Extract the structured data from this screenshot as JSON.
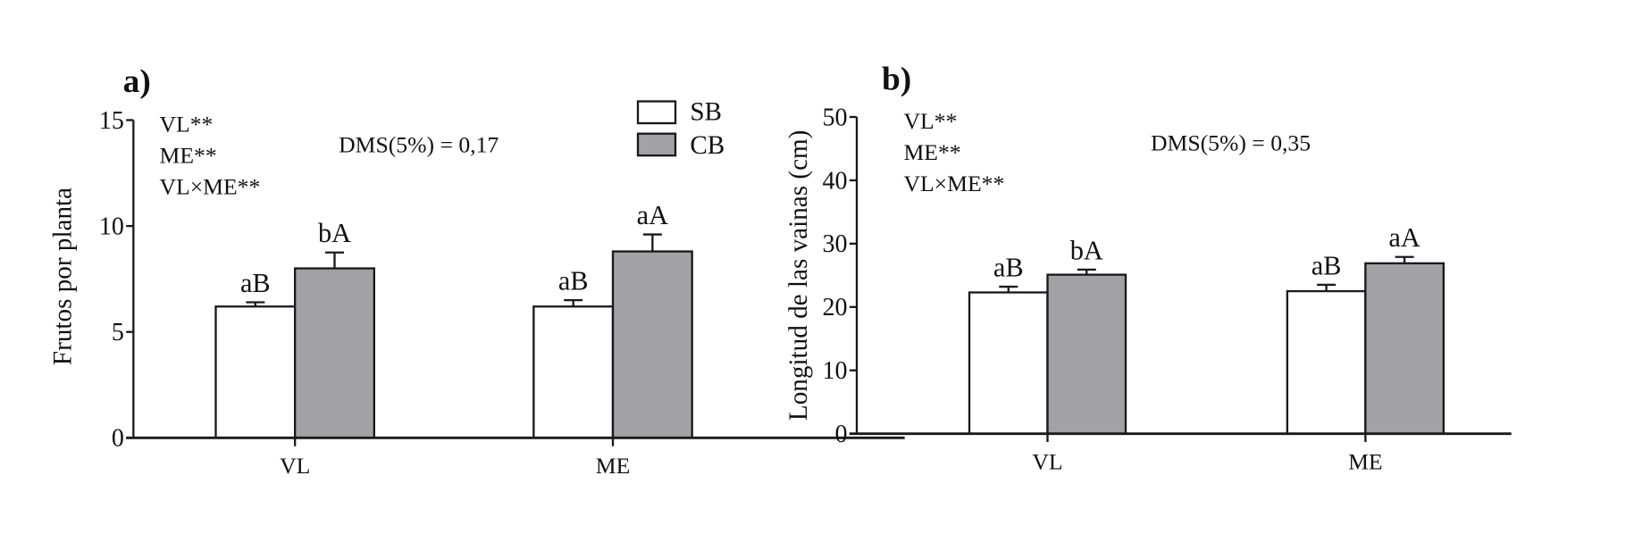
{
  "colors": {
    "SB": "#ffffff",
    "CB": "#a2a1a6",
    "stroke": "#1a1a1a"
  },
  "chart_data": [
    {
      "type": "bar",
      "panel_label": "a)",
      "ylabel": "Frutos por planta",
      "xlabel": "",
      "ylim": [
        0,
        15
      ],
      "yticks": [
        "0",
        "5",
        "10",
        "15"
      ],
      "categories": [
        "VL",
        "ME"
      ],
      "series": [
        {
          "name": "SB",
          "values": [
            6.2,
            6.2
          ],
          "errors": [
            0.2,
            0.3
          ],
          "letters": [
            "aB",
            "aB"
          ]
        },
        {
          "name": "CB",
          "values": [
            8.0,
            8.8
          ],
          "errors": [
            0.75,
            0.8
          ],
          "letters": [
            "bA",
            "aA"
          ]
        }
      ],
      "annotations": [
        "VL**",
        "ME**",
        "VL×ME**"
      ],
      "dms": "DMS(5%) = 0,17",
      "legend": "top-right",
      "grid": false
    },
    {
      "type": "bar",
      "panel_label": "b)",
      "ylabel": "Longitud de las vainas (cm)",
      "xlabel": "",
      "ylim": [
        0,
        50
      ],
      "yticks": [
        "0",
        "10",
        "20",
        "30",
        "40",
        "50"
      ],
      "categories": [
        "VL",
        "ME"
      ],
      "series": [
        {
          "name": "SB",
          "values": [
            22.3,
            22.5
          ],
          "errors": [
            0.9,
            1.0
          ],
          "letters": [
            "aB",
            "aB"
          ]
        },
        {
          "name": "CB",
          "values": [
            25.1,
            26.9
          ],
          "errors": [
            0.8,
            1.0
          ],
          "letters": [
            "bA",
            "aA"
          ]
        }
      ],
      "annotations": [
        "VL**",
        "ME**",
        "VL×ME**"
      ],
      "dms": "DMS(5%) = 0,35",
      "grid": false
    }
  ]
}
